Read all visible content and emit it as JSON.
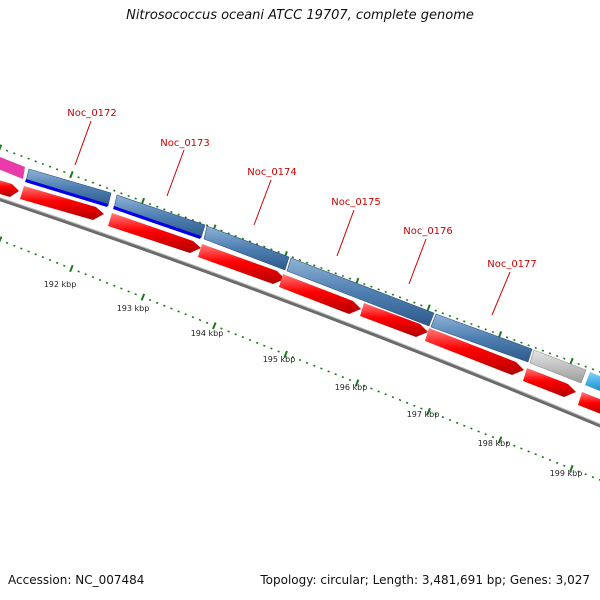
{
  "title": "Nitrosococcus oceani ATCC 19707, complete genome",
  "footer": {
    "accession": "Accession: NC_007484",
    "summary": "Topology: circular; Length: 3,481,691 bp; Genes: 3,027"
  },
  "colors": {
    "gene_label": "#cc0000",
    "cds_red": "#ff0000",
    "blue_cog": "#4f7fb3",
    "dark_blue": "#0000e6",
    "magenta": "#e83aa8",
    "grey_gene": "#bdbdbd",
    "cyan": "#1ea8ee",
    "tick": "#1a7a1a",
    "backbone": "#6a6a6a"
  },
  "scale": {
    "tick_labels": [
      "192 kbp",
      "193 kbp",
      "194 kbp",
      "195 kbp",
      "196 kbp",
      "197 kbp",
      "198 kbp",
      "199 kbp"
    ]
  },
  "genes": [
    {
      "label": "Noc_0172"
    },
    {
      "label": "Noc_0173"
    },
    {
      "label": "Noc_0174"
    },
    {
      "label": "Noc_0175"
    },
    {
      "label": "Noc_0176"
    },
    {
      "label": "Noc_0177"
    }
  ]
}
